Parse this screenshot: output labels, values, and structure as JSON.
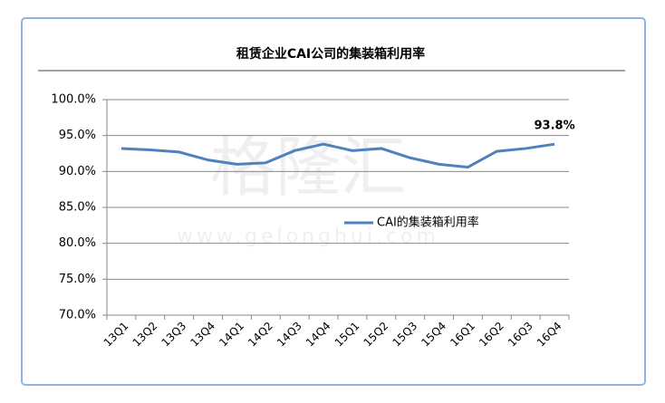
{
  "chart_data": {
    "type": "line",
    "title": "租赁企业CAI公司的集装箱利用率",
    "watermark": {
      "logo": "格隆汇",
      "url": "www.gelonghui.com"
    },
    "categories": [
      "13Q1",
      "13Q2",
      "13Q3",
      "13Q4",
      "14Q1",
      "14Q2",
      "14Q3",
      "14Q4",
      "15Q1",
      "15Q2",
      "15Q3",
      "15Q4",
      "16Q1",
      "16Q2",
      "16Q3",
      "16Q4"
    ],
    "series": [
      {
        "name": "CAI的集装箱利用率",
        "color": "#4f81bd",
        "values": [
          93.2,
          93.0,
          92.7,
          91.6,
          91.0,
          91.2,
          92.9,
          93.8,
          92.9,
          93.2,
          91.9,
          91.0,
          90.6,
          92.8,
          93.2,
          93.8
        ],
        "value_labels": [
          null,
          null,
          null,
          null,
          null,
          null,
          null,
          null,
          null,
          null,
          null,
          null,
          null,
          null,
          null,
          "93.8%"
        ]
      }
    ],
    "ylim": [
      70,
      100
    ],
    "yticks": [
      {
        "value": 70,
        "label": "70.0%"
      },
      {
        "value": 75,
        "label": "75.0%"
      },
      {
        "value": 80,
        "label": "80.0%"
      },
      {
        "value": 85,
        "label": "85.0%"
      },
      {
        "value": 90,
        "label": "90.0%"
      },
      {
        "value": 95,
        "label": "95.0%"
      },
      {
        "value": 100,
        "label": "100.0%"
      }
    ],
    "grid": true
  }
}
